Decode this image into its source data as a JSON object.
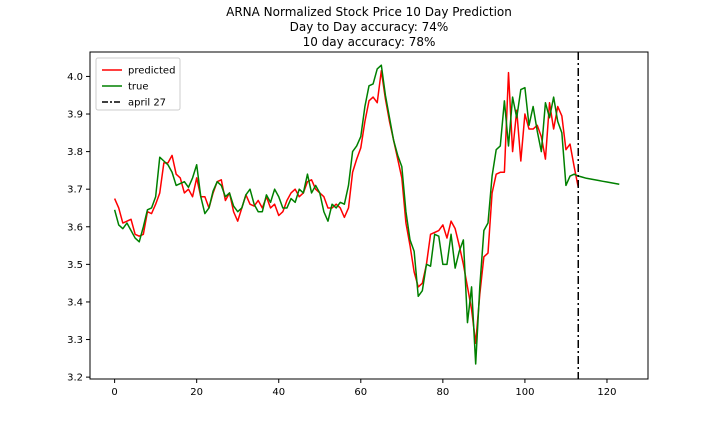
{
  "chart_data": {
    "type": "line",
    "title": "ARNA Normalized Stock Price 10 Day Prediction",
    "subtitle_lines": [
      "Day to Day accuracy: 74%",
      "10 day accuracy: 78%"
    ],
    "xlabel": "",
    "ylabel": "",
    "xlim": [
      -6,
      130
    ],
    "ylim": [
      3.195,
      4.065
    ],
    "xticks": [
      0,
      20,
      40,
      60,
      80,
      100,
      120
    ],
    "yticks": [
      3.2,
      3.3,
      3.4,
      3.5,
      3.6,
      3.7,
      3.8,
      3.9,
      4.0
    ],
    "ytick_labels": [
      "3.2",
      "3.3",
      "3.4",
      "3.5",
      "3.6",
      "3.7",
      "3.8",
      "3.9",
      "4.0"
    ],
    "grid": false,
    "legend_position": "top-left",
    "series": [
      {
        "name": "predicted",
        "color": "#ff0000",
        "x": [
          0,
          1,
          2,
          3,
          4,
          5,
          6,
          7,
          8,
          9,
          10,
          11,
          12,
          13,
          14,
          15,
          16,
          17,
          18,
          19,
          20,
          21,
          22,
          23,
          24,
          25,
          26,
          27,
          28,
          29,
          30,
          31,
          32,
          33,
          34,
          35,
          36,
          37,
          38,
          39,
          40,
          41,
          42,
          43,
          44,
          45,
          46,
          47,
          48,
          49,
          50,
          51,
          52,
          53,
          54,
          55,
          56,
          57,
          58,
          59,
          60,
          61,
          62,
          63,
          64,
          65,
          66,
          67,
          68,
          69,
          70,
          71,
          72,
          73,
          74,
          75,
          76,
          77,
          78,
          79,
          80,
          81,
          82,
          83,
          84,
          85,
          86,
          87,
          88,
          89,
          90,
          91,
          92,
          93,
          94,
          95,
          96,
          97,
          98,
          99,
          100,
          101,
          102,
          103,
          104,
          105,
          106,
          107,
          108,
          109,
          110,
          111,
          112,
          113
        ],
        "values": [
          3.675,
          3.65,
          3.61,
          3.615,
          3.62,
          3.58,
          3.575,
          3.58,
          3.64,
          3.635,
          3.66,
          3.69,
          3.77,
          3.77,
          3.79,
          3.74,
          3.73,
          3.69,
          3.7,
          3.68,
          3.73,
          3.68,
          3.68,
          3.65,
          3.69,
          3.72,
          3.725,
          3.67,
          3.69,
          3.64,
          3.615,
          3.65,
          3.685,
          3.66,
          3.655,
          3.67,
          3.65,
          3.68,
          3.65,
          3.66,
          3.63,
          3.64,
          3.67,
          3.69,
          3.7,
          3.68,
          3.69,
          3.72,
          3.725,
          3.7,
          3.69,
          3.68,
          3.65,
          3.65,
          3.66,
          3.65,
          3.625,
          3.65,
          3.745,
          3.78,
          3.81,
          3.88,
          3.935,
          3.945,
          3.93,
          4.015,
          3.94,
          3.88,
          3.83,
          3.78,
          3.73,
          3.61,
          3.55,
          3.48,
          3.44,
          3.45,
          3.5,
          3.58,
          3.585,
          3.59,
          3.605,
          3.57,
          3.615,
          3.595,
          3.55,
          3.5,
          3.44,
          3.38,
          3.29,
          3.42,
          3.52,
          3.53,
          3.69,
          3.74,
          3.745,
          3.745,
          4.01,
          3.8,
          3.91,
          3.775,
          3.9,
          3.86,
          3.86,
          3.87,
          3.84,
          3.78,
          3.93,
          3.86,
          3.92,
          3.895,
          3.805,
          3.82,
          3.76,
          3.705
        ]
      },
      {
        "name": "true",
        "color": "#008000",
        "x": [
          0,
          1,
          2,
          3,
          4,
          5,
          6,
          7,
          8,
          9,
          10,
          11,
          12,
          13,
          14,
          15,
          16,
          17,
          18,
          19,
          20,
          21,
          22,
          23,
          24,
          25,
          26,
          27,
          28,
          29,
          30,
          31,
          32,
          33,
          34,
          35,
          36,
          37,
          38,
          39,
          40,
          41,
          42,
          43,
          44,
          45,
          46,
          47,
          48,
          49,
          50,
          51,
          52,
          53,
          54,
          55,
          56,
          57,
          58,
          59,
          60,
          61,
          62,
          63,
          64,
          65,
          66,
          67,
          68,
          69,
          70,
          71,
          72,
          73,
          74,
          75,
          76,
          77,
          78,
          79,
          80,
          81,
          82,
          83,
          84,
          85,
          86,
          87,
          88,
          89,
          90,
          91,
          92,
          93,
          94,
          95,
          96,
          97,
          98,
          99,
          100,
          101,
          102,
          103,
          104,
          105,
          106,
          107,
          108,
          109,
          110,
          111,
          112,
          113,
          114,
          115,
          116,
          117,
          118,
          119,
          120,
          121,
          122,
          123
        ],
        "values": [
          3.645,
          3.605,
          3.595,
          3.61,
          3.59,
          3.57,
          3.56,
          3.6,
          3.645,
          3.65,
          3.68,
          3.785,
          3.775,
          3.765,
          3.745,
          3.71,
          3.715,
          3.72,
          3.705,
          3.73,
          3.765,
          3.68,
          3.635,
          3.65,
          3.695,
          3.72,
          3.71,
          3.68,
          3.69,
          3.655,
          3.64,
          3.65,
          3.685,
          3.7,
          3.66,
          3.64,
          3.64,
          3.685,
          3.665,
          3.7,
          3.68,
          3.65,
          3.65,
          3.675,
          3.665,
          3.7,
          3.69,
          3.74,
          3.69,
          3.71,
          3.69,
          3.64,
          3.615,
          3.66,
          3.65,
          3.665,
          3.66,
          3.71,
          3.8,
          3.815,
          3.84,
          3.92,
          3.975,
          3.98,
          4.02,
          4.03,
          3.95,
          3.89,
          3.83,
          3.79,
          3.76,
          3.64,
          3.565,
          3.535,
          3.415,
          3.43,
          3.5,
          3.495,
          3.58,
          3.575,
          3.5,
          3.5,
          3.58,
          3.49,
          3.535,
          3.565,
          3.345,
          3.44,
          3.235,
          3.44,
          3.59,
          3.61,
          3.735,
          3.805,
          3.815,
          3.935,
          3.815,
          3.945,
          3.89,
          3.965,
          3.97,
          3.87,
          3.92,
          3.855,
          3.8,
          3.93,
          3.89,
          3.945,
          3.88,
          3.85,
          3.71,
          3.735,
          3.74,
          3.735,
          3.732,
          3.729,
          3.727,
          3.725,
          3.723,
          3.721,
          3.719,
          3.717,
          3.715,
          3.713
        ]
      }
    ],
    "vline": {
      "name": "april 27",
      "x": 113,
      "color": "#000000",
      "style": "dash-dot"
    }
  }
}
